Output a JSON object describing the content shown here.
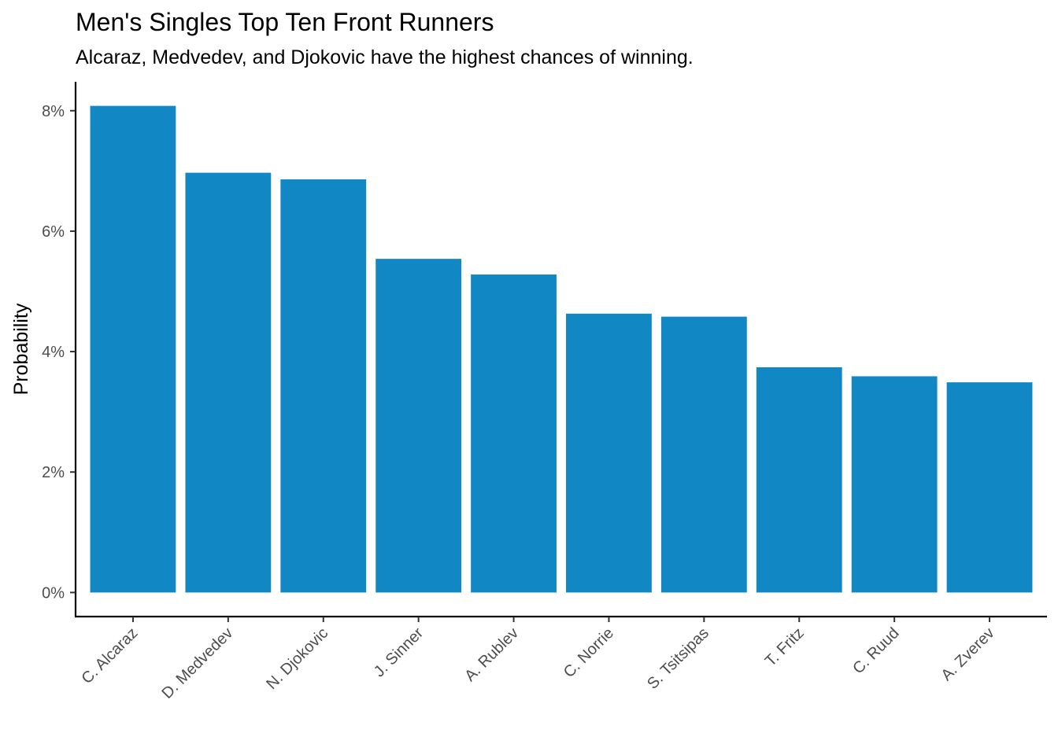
{
  "chart_data": {
    "type": "bar",
    "title": "Men's Singles Top Ten Front Runners",
    "subtitle": "Alcaraz, Medvedev, and Djokovic have the highest chances of winning.",
    "xlabel": "",
    "ylabel": "Probability",
    "categories": [
      "C. Alcaraz",
      "D. Medvedev",
      "N. Djokovic",
      "J. Sinner",
      "A. Rublev",
      "C. Norrie",
      "S. Tsitsipas",
      "T. Fritz",
      "C. Ruud",
      "A. Zverev"
    ],
    "values": [
      8.08,
      6.97,
      6.86,
      5.54,
      5.28,
      4.63,
      4.58,
      3.74,
      3.59,
      3.49
    ],
    "y_ticks": [
      0,
      2,
      4,
      6,
      8
    ],
    "y_tick_labels": [
      "0%",
      "2%",
      "4%",
      "6%",
      "8%"
    ],
    "ylim": [
      -0.4,
      8.48
    ],
    "grid": false,
    "legend": "none",
    "bar_color": "#1188C4"
  }
}
